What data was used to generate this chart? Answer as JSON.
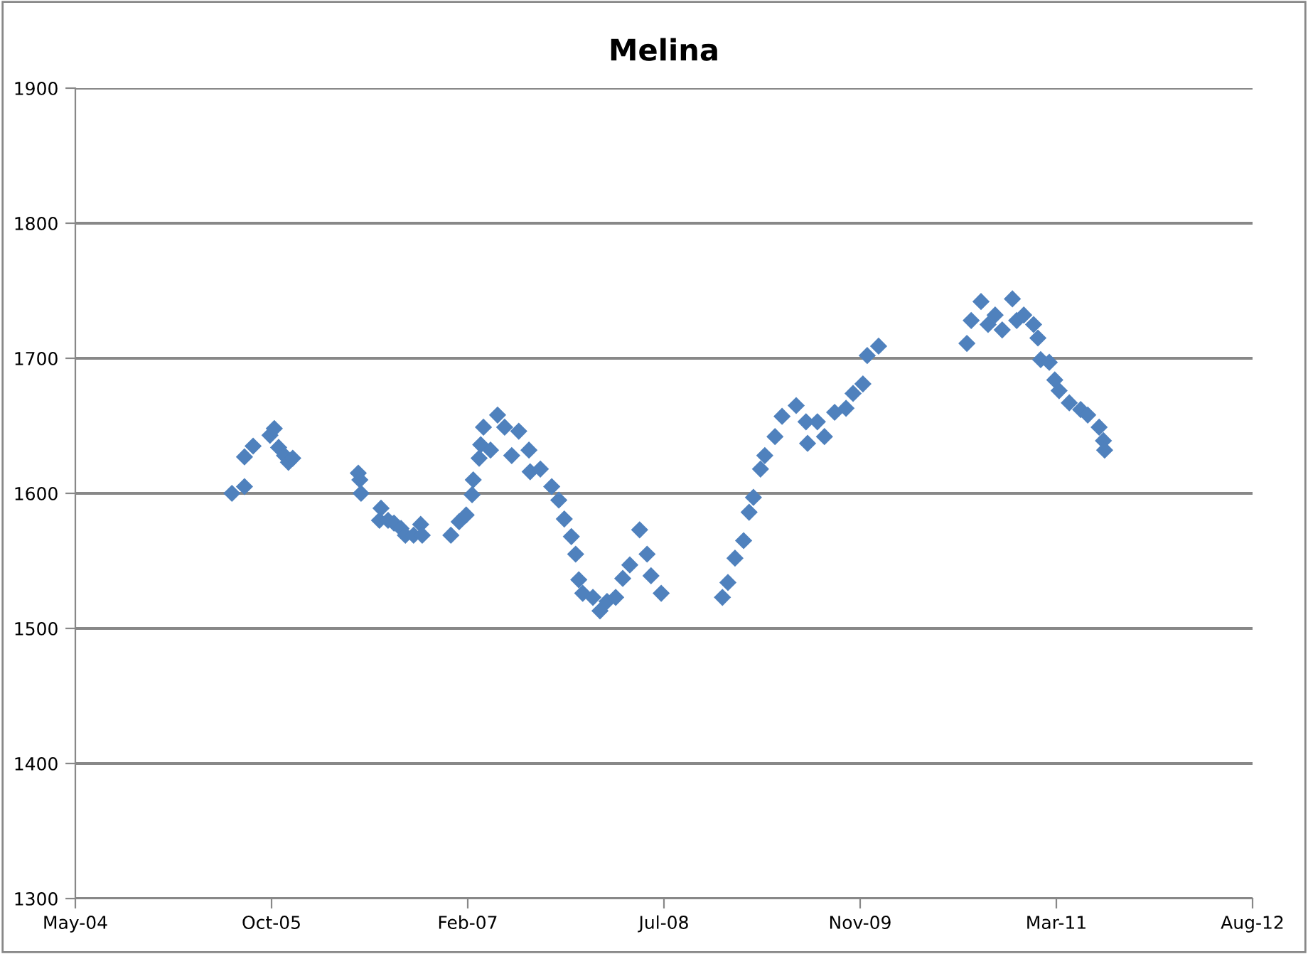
{
  "chart_data": {
    "type": "scatter",
    "title": "Melina",
    "x": [
      "2005-06-28",
      "2005-07-30",
      "2005-07-30",
      "2005-08-21",
      "2005-10-03",
      "2005-10-14",
      "2005-10-25",
      "2005-11-09",
      "2005-11-19",
      "2005-11-30",
      "2006-05-16",
      "2006-05-20",
      "2006-05-23",
      "2006-07-13",
      "2006-07-09",
      "2006-07-31",
      "2006-08-15",
      "2006-09-02",
      "2006-09-13",
      "2006-10-04",
      "2006-10-22",
      "2006-10-26",
      "2007-01-07",
      "2007-01-28",
      "2007-02-15",
      "2007-03-02",
      "2007-03-05",
      "2007-03-20",
      "2007-03-24",
      "2007-03-31",
      "2007-04-18",
      "2007-05-06",
      "2007-05-24",
      "2007-06-11",
      "2007-06-29",
      "2007-07-25",
      "2007-07-28",
      "2007-08-23",
      "2007-09-21",
      "2007-10-09",
      "2007-10-23",
      "2007-11-10",
      "2007-11-21",
      "2007-11-29",
      "2007-12-09",
      "2008-01-04",
      "2008-01-22",
      "2008-02-09",
      "2008-03-02",
      "2008-03-20",
      "2008-04-07",
      "2008-05-02",
      "2008-05-21",
      "2008-05-31",
      "2008-06-26",
      "2008-11-29",
      "2008-12-13",
      "2008-12-31",
      "2009-01-22",
      "2009-02-05",
      "2009-02-16",
      "2009-03-06",
      "2009-03-17",
      "2009-04-12",
      "2009-04-30",
      "2009-06-05",
      "2009-06-30",
      "2009-07-04",
      "2009-07-29",
      "2009-08-16",
      "2009-09-11",
      "2009-10-10",
      "2009-10-28",
      "2009-11-22",
      "2009-12-03",
      "2010-01-01",
      "2010-08-14",
      "2010-08-25",
      "2010-09-19",
      "2010-10-07",
      "2010-10-25",
      "2010-11-12",
      "2010-12-08",
      "2010-12-19",
      "2011-01-06",
      "2011-01-31",
      "2011-02-11",
      "2011-02-18",
      "2011-03-12",
      "2011-03-26",
      "2011-04-06",
      "2011-05-02",
      "2011-05-31",
      "2011-06-18",
      "2011-07-17",
      "2011-07-28",
      "2011-07-31"
    ],
    "values": [
      1600,
      1605,
      1627,
      1635,
      1643,
      1648,
      1634,
      1628,
      1623,
      1626,
      1615,
      1610,
      1600,
      1589,
      1580,
      1580,
      1578,
      1574,
      1569,
      1569,
      1577,
      1569,
      1569,
      1579,
      1584,
      1599,
      1610,
      1626,
      1636,
      1649,
      1632,
      1658,
      1649,
      1628,
      1646,
      1632,
      1616,
      1618,
      1605,
      1595,
      1581,
      1568,
      1555,
      1536,
      1526,
      1523,
      1513,
      1520,
      1523,
      1537,
      1547,
      1573,
      1555,
      1539,
      1526,
      1523,
      1534,
      1552,
      1565,
      1586,
      1597,
      1618,
      1628,
      1642,
      1657,
      1665,
      1653,
      1637,
      1653,
      1642,
      1660,
      1663,
      1674,
      1681,
      1702,
      1709,
      1711,
      1728,
      1742,
      1725,
      1732,
      1721,
      1744,
      1728,
      1732,
      1725,
      1715,
      1699,
      1697,
      1684,
      1676,
      1667,
      1662,
      1658,
      1649,
      1639,
      1632
    ],
    "color": "#4f81bd",
    "marker": "diamond",
    "xlim": [
      "2004-05-25",
      "2012-08-11"
    ],
    "xticks": [
      {
        "value": "2004-05-25",
        "label": "May-04"
      },
      {
        "value": "2005-10-07",
        "label": "Oct-05"
      },
      {
        "value": "2007-02-19",
        "label": "Feb-07"
      },
      {
        "value": "2008-07-03",
        "label": "Jul-08"
      },
      {
        "value": "2009-11-15",
        "label": "Nov-09"
      },
      {
        "value": "2011-03-30",
        "label": "Mar-11"
      },
      {
        "value": "2012-08-11",
        "label": "Aug-12"
      }
    ],
    "ylim": [
      1300,
      1900
    ],
    "yticks": [
      1300,
      1400,
      1500,
      1600,
      1700,
      1800,
      1900
    ],
    "grid": "y"
  }
}
